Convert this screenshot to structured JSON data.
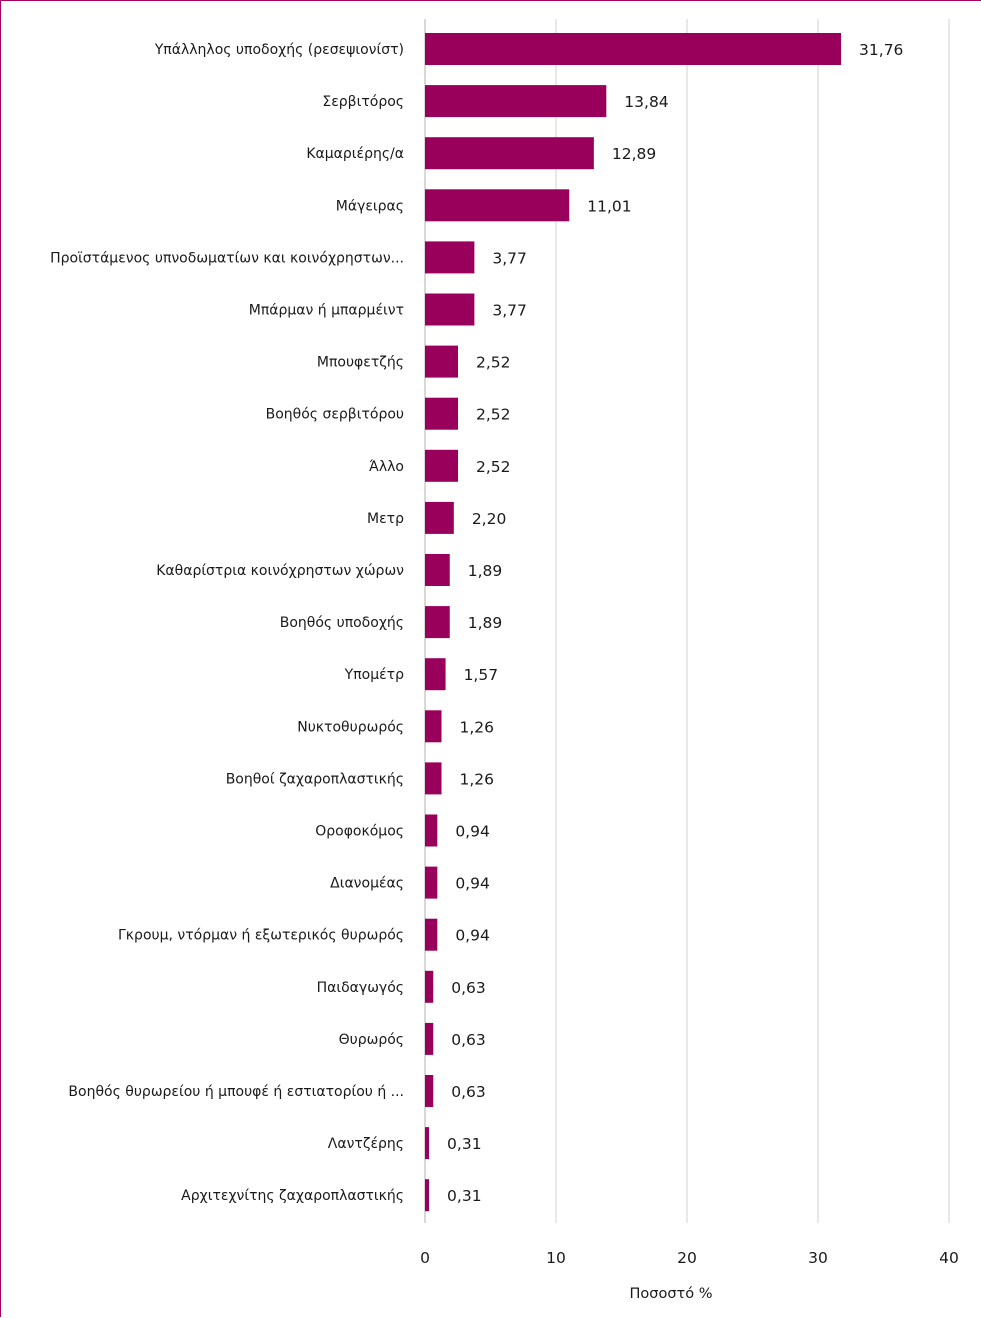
{
  "chart_data": {
    "type": "bar",
    "orientation": "horizontal",
    "title": "",
    "xlabel": "Ποσοστό %",
    "ylabel": "",
    "xlim": [
      0,
      40
    ],
    "xticks": [
      0,
      10,
      20,
      30,
      40
    ],
    "grid": true,
    "bar_color": "#99005c",
    "categories": [
      "Υπάλληλος υποδοχής (ρεσεψιονίστ)",
      "Σερβιτόρος",
      "Καμαριέρης/α",
      "Μάγειρας",
      "Προϊστάμενος υπνοδωματίων και κοινόχρηστων...",
      "Μπάρμαν ή μπαρμέιντ",
      "Μπουφετζής",
      "Βοηθός σερβιτόρου",
      "Άλλο",
      "Μετρ",
      "Καθαρίστρια κοινόχρηστων χώρων",
      "Βοηθός υποδοχής",
      "Υπομέτρ",
      "Νυκτοθυρωρός",
      "Βοηθοί ζαχαροπλαστικής",
      "Οροφοκόμος",
      "Διανομέας",
      "Γκρουμ, ντόρμαν ή εξωτερικός θυρωρός",
      "Παιδαγωγός",
      "Θυρωρός",
      "Βοηθός θυρωρείου ή μπουφέ ή εστιατορίου ή ...",
      "Λαντζέρης",
      "Αρχιτεχνίτης ζαχαροπλαστικής"
    ],
    "values": [
      31.76,
      13.84,
      12.89,
      11.01,
      3.77,
      3.77,
      2.52,
      2.52,
      2.52,
      2.2,
      1.89,
      1.89,
      1.57,
      1.26,
      1.26,
      0.94,
      0.94,
      0.94,
      0.63,
      0.63,
      0.63,
      0.31,
      0.31
    ],
    "value_labels": [
      "31,76",
      "13,84",
      "12,89",
      "11,01",
      "3,77",
      "3,77",
      "2,52",
      "2,52",
      "2,52",
      "2,20",
      "1,89",
      "1,89",
      "1,57",
      "1,26",
      "1,26",
      "0,94",
      "0,94",
      "0,94",
      "0,63",
      "0,63",
      "0,63",
      "0,31",
      "0,31"
    ]
  }
}
